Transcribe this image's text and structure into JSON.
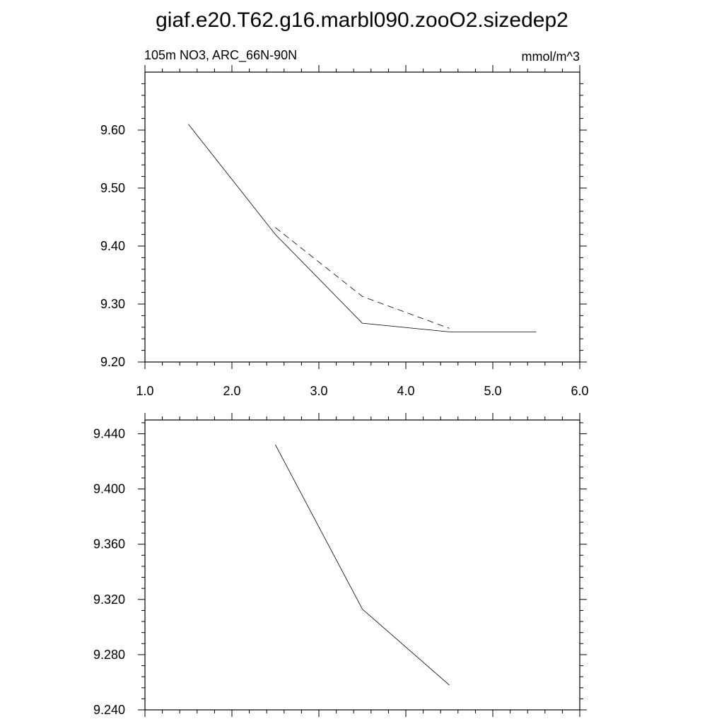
{
  "figure": {
    "title": "giaf.e20.T62.g16.marbl090.zooO2.sizedep2"
  },
  "chart_data": [
    {
      "type": "line",
      "left_label": "105m NO3, ARC_66N-90N",
      "right_label": "mmol/m^3",
      "xlim": [
        1.0,
        6.0
      ],
      "ylim": [
        9.2,
        9.7
      ],
      "x_ticks": [
        1.0,
        2.0,
        3.0,
        4.0,
        5.0,
        6.0
      ],
      "x_tick_labels": [
        "1.0",
        "2.0",
        "3.0",
        "4.0",
        "5.0",
        "6.0"
      ],
      "y_ticks": [
        9.2,
        9.3,
        9.4,
        9.5,
        9.6
      ],
      "y_tick_labels": [
        "9.20",
        "9.30",
        "9.40",
        "9.50",
        "9.60"
      ],
      "grid": false,
      "series": [
        {
          "style": "solid",
          "x": [
            1.5,
            2.5,
            3.5,
            4.5,
            5.5
          ],
          "y": [
            9.61,
            9.42,
            9.267,
            9.252,
            9.252
          ]
        },
        {
          "style": "dashed",
          "x": [
            2.5,
            3.5,
            4.5
          ],
          "y": [
            9.432,
            9.313,
            9.258
          ]
        }
      ]
    },
    {
      "type": "line",
      "xlim": [
        1.0,
        6.0
      ],
      "ylim": [
        9.24,
        9.45
      ],
      "x_ticks": [
        1.0,
        2.0,
        3.0,
        4.0,
        5.0,
        6.0
      ],
      "x_tick_labels": [],
      "y_ticks": [
        9.24,
        9.28,
        9.32,
        9.36,
        9.4,
        9.44
      ],
      "y_tick_labels": [
        "9.240",
        "9.280",
        "9.320",
        "9.360",
        "9.400",
        "9.440"
      ],
      "grid": false,
      "series": [
        {
          "style": "solid",
          "x": [
            2.5,
            3.5,
            4.5
          ],
          "y": [
            9.432,
            9.313,
            9.258
          ]
        }
      ]
    }
  ]
}
